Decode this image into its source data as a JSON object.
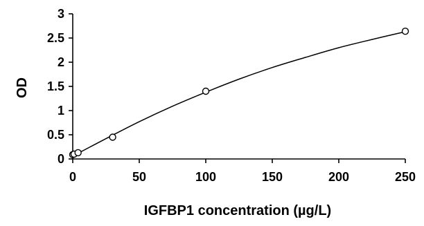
{
  "chart_data": {
    "type": "scatter",
    "xlabel": "IGFBP1 concentration (µg/L)",
    "ylabel": "OD",
    "xlim": [
      0,
      250
    ],
    "ylim": [
      0,
      3
    ],
    "x_ticks": [
      "0",
      "50",
      "100",
      "150",
      "200",
      "250"
    ],
    "y_ticks": [
      "0",
      "0.5",
      "1",
      "1.5",
      "2",
      "2.5",
      "3"
    ],
    "grid": false,
    "legend": "none",
    "series": [
      {
        "points": [
          {
            "x": 0,
            "y": 0.09
          },
          {
            "x": 1,
            "y": 0.1
          },
          {
            "x": 4,
            "y": 0.13
          },
          {
            "x": 30,
            "y": 0.45
          },
          {
            "x": 100,
            "y": 1.4
          },
          {
            "x": 250,
            "y": 2.64
          }
        ],
        "marker": "open-circle",
        "color": "#000000"
      }
    ],
    "fit_curve": {
      "type": "smooth-line",
      "points": [
        {
          "x": 0,
          "y": 0.06
        },
        {
          "x": 25,
          "y": 0.42
        },
        {
          "x": 50,
          "y": 0.77
        },
        {
          "x": 75,
          "y": 1.09
        },
        {
          "x": 100,
          "y": 1.38
        },
        {
          "x": 125,
          "y": 1.65
        },
        {
          "x": 150,
          "y": 1.89
        },
        {
          "x": 175,
          "y": 2.1
        },
        {
          "x": 200,
          "y": 2.3
        },
        {
          "x": 225,
          "y": 2.47
        },
        {
          "x": 250,
          "y": 2.63
        }
      ],
      "color": "#000000"
    }
  }
}
